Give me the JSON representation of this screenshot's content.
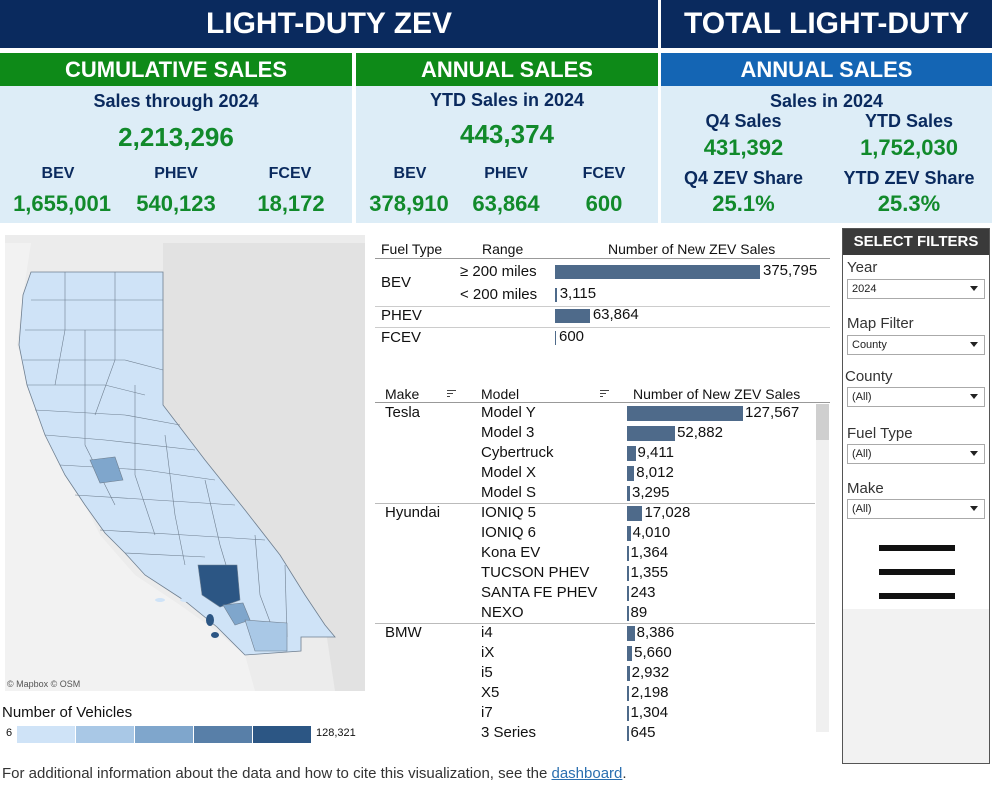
{
  "headers": {
    "zev_title": "LIGHT-DUTY ZEV",
    "total_title": "TOTAL LIGHT-DUTY"
  },
  "cumulative": {
    "header": "CUMULATIVE SALES",
    "subtitle": "Sales through 2024",
    "total": "2,213,296",
    "types": [
      {
        "label": "BEV",
        "value": "1,655,001"
      },
      {
        "label": "PHEV",
        "value": "540,123"
      },
      {
        "label": "FCEV",
        "value": "18,172"
      }
    ]
  },
  "annual": {
    "header": "ANNUAL SALES",
    "subtitle": "YTD Sales in 2024",
    "total": "443,374",
    "types": [
      {
        "label": "BEV",
        "value": "378,910"
      },
      {
        "label": "PHEV",
        "value": "63,864"
      },
      {
        "label": "FCEV",
        "value": "600"
      }
    ]
  },
  "total_annual": {
    "header": "ANNUAL SALES",
    "subtitle": "Sales in 2024",
    "q4_label": "Q4 Sales",
    "q4_value": "431,392",
    "ytd_label": "YTD Sales",
    "ytd_value": "1,752,030",
    "q4_share_label": "Q4 ZEV Share",
    "q4_share_value": "25.1%",
    "ytd_share_label": "YTD ZEV Share",
    "ytd_share_value": "25.3%"
  },
  "map": {
    "attribution": "© Mapbox  © OSM",
    "legend_title": "Number of Vehicles",
    "legend_min": "6",
    "legend_max": "128,321",
    "legend_colors": [
      "#cfe3f7",
      "#a9c8e6",
      "#7fa6cc",
      "#587fa8",
      "#2c5684"
    ]
  },
  "fuel_table": {
    "col_fuel": "Fuel Type",
    "col_range": "Range",
    "col_sales": "Number of New ZEV Sales",
    "rows": [
      {
        "fuel": "BEV",
        "range": "≥ 200 miles",
        "value": 375795,
        "label": "375,795"
      },
      {
        "fuel": "",
        "range": "< 200 miles",
        "value": 3115,
        "label": "3,115"
      },
      {
        "fuel": "PHEV",
        "range": "",
        "value": 63864,
        "label": "63,864"
      },
      {
        "fuel": "FCEV",
        "range": "",
        "value": 600,
        "label": "600"
      }
    ]
  },
  "model_table": {
    "col_make": "Make",
    "col_model": "Model",
    "col_sales": "Number of New ZEV Sales",
    "rows": [
      {
        "make": "Tesla",
        "model": "Model Y",
        "value": 127567,
        "label": "127,567"
      },
      {
        "make": "",
        "model": "Model 3",
        "value": 52882,
        "label": "52,882"
      },
      {
        "make": "",
        "model": "Cybertruck",
        "value": 9411,
        "label": "9,411"
      },
      {
        "make": "",
        "model": "Model X",
        "value": 8012,
        "label": "8,012"
      },
      {
        "make": "",
        "model": "Model S",
        "value": 3295,
        "label": "3,295"
      },
      {
        "make": "Hyundai",
        "model": "IONIQ 5",
        "value": 17028,
        "label": "17,028"
      },
      {
        "make": "",
        "model": "IONIQ 6",
        "value": 4010,
        "label": "4,010"
      },
      {
        "make": "",
        "model": "Kona EV",
        "value": 1364,
        "label": "1,364"
      },
      {
        "make": "",
        "model": "TUCSON PHEV",
        "value": 1355,
        "label": "1,355"
      },
      {
        "make": "",
        "model": "SANTA FE PHEV",
        "value": 243,
        "label": "243"
      },
      {
        "make": "",
        "model": "NEXO",
        "value": 89,
        "label": "89"
      },
      {
        "make": "BMW",
        "model": "i4",
        "value": 8386,
        "label": "8,386"
      },
      {
        "make": "",
        "model": "iX",
        "value": 5660,
        "label": "5,660"
      },
      {
        "make": "",
        "model": "i5",
        "value": 2932,
        "label": "2,932"
      },
      {
        "make": "",
        "model": "X5",
        "value": 2198,
        "label": "2,198"
      },
      {
        "make": "",
        "model": "i7",
        "value": 1304,
        "label": "1,304"
      },
      {
        "make": "",
        "model": "3 Series",
        "value": 645,
        "label": "645"
      }
    ]
  },
  "filters": {
    "title": "SELECT FILTERS",
    "items": [
      {
        "label": "Year",
        "value": "2024"
      },
      {
        "label": "Map Filter",
        "value": "County"
      },
      {
        "label": "County",
        "value": "(All)"
      },
      {
        "label": "Fuel Type",
        "value": "(All)"
      },
      {
        "label": "Make",
        "value": "(All)"
      }
    ],
    "menu_icon": "hamburger-menu-icon"
  },
  "footer": {
    "text": "For additional information about the data and how to cite this visualization, see the ",
    "link": "dashboard",
    "end": "."
  }
}
